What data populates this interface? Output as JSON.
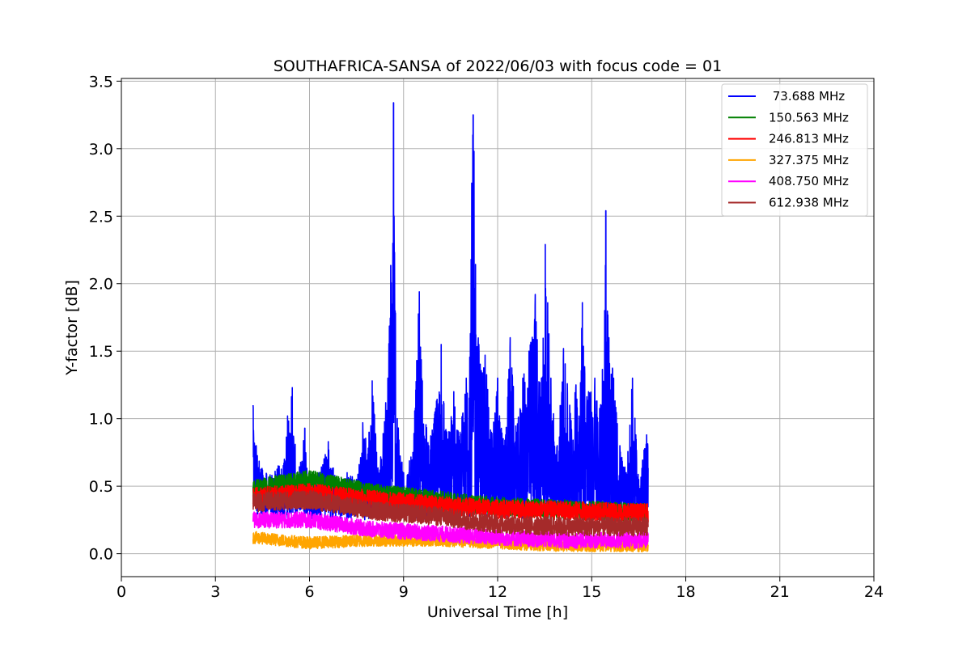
{
  "chart_data": {
    "type": "line",
    "title": "SOUTHAFRICA-SANSA of 2022/06/03 with focus code = 01",
    "xlabel": "Universal Time [h]",
    "ylabel": "Y-factor [dB]",
    "xlim": [
      0,
      24
    ],
    "ylim": [
      -0.17,
      3.52
    ],
    "xticks": [
      0,
      3,
      6,
      9,
      12,
      15,
      18,
      21,
      24
    ],
    "yticks": [
      0.0,
      0.5,
      1.0,
      1.5,
      2.0,
      2.5,
      3.0,
      3.5
    ],
    "xtick_labels": [
      "0",
      "3",
      "6",
      "9",
      "12",
      "15",
      "18",
      "21",
      "24"
    ],
    "ytick_labels": [
      "0.0",
      "0.5",
      "1.0",
      "1.5",
      "2.0",
      "2.5",
      "3.0",
      "3.5"
    ],
    "grid": true,
    "legend_position": "top-right",
    "x_range_of_data": [
      4.2,
      16.8
    ],
    "series": [
      {
        "name": " 73.688 MHz",
        "color": "#0000ff",
        "points": [
          [
            4.2,
            1.1
          ],
          [
            4.3,
            0.8
          ],
          [
            4.5,
            0.62
          ],
          [
            4.8,
            0.58
          ],
          [
            5.0,
            0.65
          ],
          [
            5.2,
            0.7
          ],
          [
            5.3,
            1.02
          ],
          [
            5.45,
            1.23
          ],
          [
            5.6,
            0.55
          ],
          [
            5.85,
            0.93
          ],
          [
            6.0,
            0.5
          ],
          [
            6.3,
            0.6
          ],
          [
            6.6,
            0.83
          ],
          [
            6.9,
            0.5
          ],
          [
            7.2,
            0.6
          ],
          [
            7.5,
            0.55
          ],
          [
            7.7,
            0.97
          ],
          [
            7.9,
            0.9
          ],
          [
            8.0,
            1.28
          ],
          [
            8.2,
            0.6
          ],
          [
            8.5,
            1.3
          ],
          [
            8.68,
            3.34
          ],
          [
            8.8,
            1.0
          ],
          [
            9.0,
            0.6
          ],
          [
            9.3,
            0.75
          ],
          [
            9.5,
            1.94
          ],
          [
            9.6,
            1.28
          ],
          [
            9.8,
            0.8
          ],
          [
            10.0,
            1.05
          ],
          [
            10.2,
            1.55
          ],
          [
            10.4,
            0.85
          ],
          [
            10.6,
            1.2
          ],
          [
            10.8,
            0.9
          ],
          [
            11.0,
            1.3
          ],
          [
            11.22,
            3.25
          ],
          [
            11.4,
            1.55
          ],
          [
            11.6,
            1.47
          ],
          [
            11.8,
            0.9
          ],
          [
            12.0,
            1.3
          ],
          [
            12.2,
            0.8
          ],
          [
            12.4,
            1.6
          ],
          [
            12.6,
            0.9
          ],
          [
            12.8,
            1.3
          ],
          [
            13.0,
            1.5
          ],
          [
            13.2,
            1.92
          ],
          [
            13.4,
            1.3
          ],
          [
            13.52,
            2.29
          ],
          [
            13.7,
            1.3
          ],
          [
            13.9,
            0.8
          ],
          [
            14.1,
            1.52
          ],
          [
            14.3,
            1.1
          ],
          [
            14.5,
            1.25
          ],
          [
            14.7,
            1.86
          ],
          [
            14.9,
            1.2
          ],
          [
            15.1,
            1.3
          ],
          [
            15.3,
            1.1
          ],
          [
            15.45,
            2.54
          ],
          [
            15.55,
            1.6
          ],
          [
            15.7,
            1.3
          ],
          [
            15.9,
            0.8
          ],
          [
            16.1,
            0.6
          ],
          [
            16.3,
            1.3
          ],
          [
            16.5,
            0.55
          ],
          [
            16.75,
            0.88
          ]
        ]
      },
      {
        "name": "150.563 MHz",
        "color": "#008000",
        "points": [
          [
            4.2,
            0.48
          ],
          [
            6.0,
            0.55
          ],
          [
            8.0,
            0.45
          ],
          [
            10.0,
            0.4
          ],
          [
            12.0,
            0.35
          ],
          [
            14.0,
            0.33
          ],
          [
            16.8,
            0.3
          ]
        ]
      },
      {
        "name": "246.813 MHz",
        "color": "#ff0000",
        "points": [
          [
            4.2,
            0.42
          ],
          [
            6.0,
            0.45
          ],
          [
            8.0,
            0.4
          ],
          [
            10.0,
            0.36
          ],
          [
            12.0,
            0.33
          ],
          [
            14.0,
            0.32
          ],
          [
            16.8,
            0.3
          ]
        ]
      },
      {
        "name": "327.375 MHz",
        "color": "#ffa500",
        "points": [
          [
            4.2,
            0.12
          ],
          [
            6.0,
            0.08
          ],
          [
            8.0,
            0.1
          ],
          [
            10.0,
            0.1
          ],
          [
            12.0,
            0.08
          ],
          [
            14.0,
            0.06
          ],
          [
            16.8,
            0.06
          ]
        ]
      },
      {
        "name": "408.750 MHz",
        "color": "#ff00ff",
        "points": [
          [
            4.2,
            0.25
          ],
          [
            6.0,
            0.25
          ],
          [
            8.0,
            0.18
          ],
          [
            10.0,
            0.15
          ],
          [
            12.0,
            0.12
          ],
          [
            14.0,
            0.1
          ],
          [
            16.8,
            0.1
          ]
        ]
      },
      {
        "name": "612.938 MHz",
        "color": "#a52a2a",
        "points": [
          [
            4.2,
            0.38
          ],
          [
            6.0,
            0.4
          ],
          [
            8.0,
            0.32
          ],
          [
            10.0,
            0.28
          ],
          [
            12.0,
            0.22
          ],
          [
            14.0,
            0.2
          ],
          [
            16.8,
            0.2
          ]
        ]
      }
    ]
  }
}
